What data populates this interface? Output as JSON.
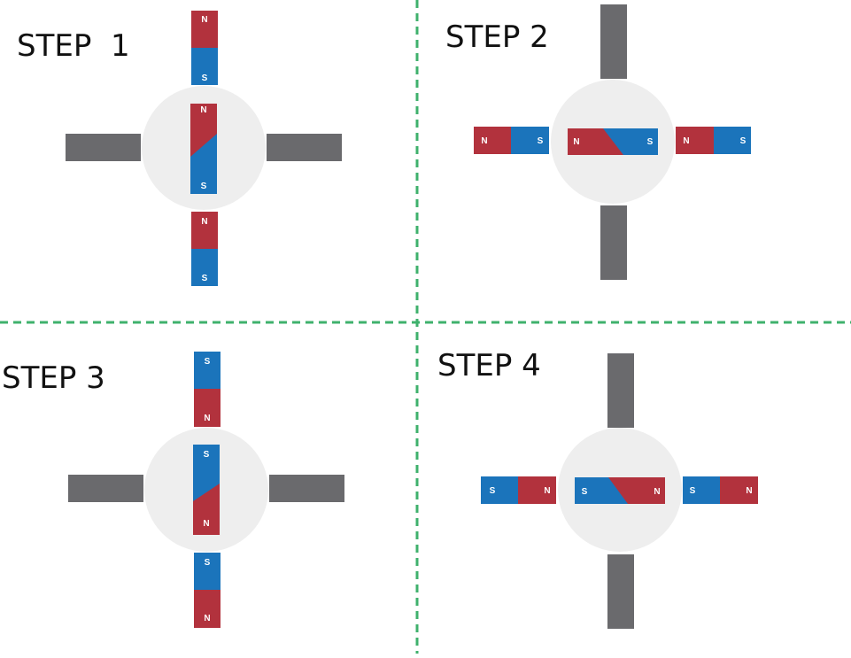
{
  "colors": {
    "north": "#B2323D",
    "south": "#1B74BB",
    "coil": "#6A6A6D",
    "rotor": "#EEEEEE",
    "divider": "#3FB16C"
  },
  "poles": {
    "north": "N",
    "south": "S"
  },
  "steps": [
    {
      "title": "STEP  1"
    },
    {
      "title": "STEP 2"
    },
    {
      "title": "STEP 3"
    },
    {
      "title": "STEP 4"
    }
  ]
}
